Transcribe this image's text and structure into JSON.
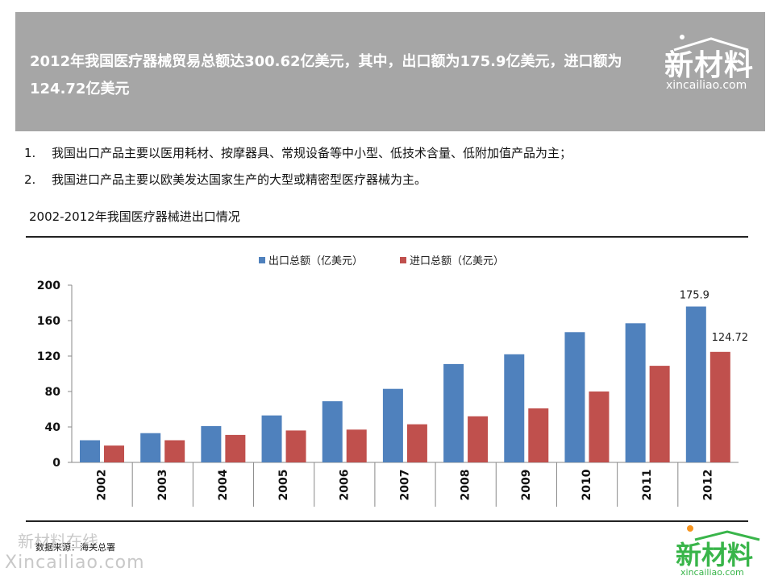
{
  "header": {
    "title": "2012年我国医疗器械贸易总额达300.62亿美元，其中，出口额为175.9亿美元，进口额为124.72亿美元"
  },
  "logo": {
    "cn": "新材料",
    "en": "xincailiao.com"
  },
  "bullets": [
    {
      "num": "1.",
      "text": "我国出口产品主要以医用耗材、按摩器具、常规设备等中小型、低技术含量、低附加值产品为主；"
    },
    {
      "num": "2.",
      "text": "我国进口产品主要以欧美发达国家生产的大型或精密型医疗器械为主。"
    }
  ],
  "chart_title": "2002-2012年我国医疗器械进出口情况",
  "source": "数据来源：海关总署",
  "watermark": {
    "cn": "新材料在线",
    "en": "Xincailiao.com"
  },
  "colors": {
    "export": "#4f81bd",
    "import": "#c0504d",
    "header_bg": "#a6a6a6",
    "logo_green": "#39b54a"
  },
  "chart_data": {
    "type": "bar",
    "categories": [
      "2002",
      "2003",
      "2004",
      "2005",
      "2006",
      "2007",
      "2008",
      "2009",
      "2010",
      "2011",
      "2012"
    ],
    "series": [
      {
        "name": "出口总额（亿美元）",
        "values": [
          25,
          33,
          41,
          53,
          69,
          83,
          111,
          122,
          147,
          157,
          175.9
        ]
      },
      {
        "name": "进口总额（亿美元）",
        "values": [
          19,
          25,
          31,
          36,
          37,
          43,
          52,
          61,
          80,
          109,
          124.72
        ]
      }
    ],
    "data_labels": {
      "show_only_last": true,
      "last_labels": [
        "175.9",
        "124.72"
      ]
    },
    "y_ticks": [
      "0",
      "40",
      "80",
      "120",
      "160",
      "200"
    ],
    "ylim": [
      0,
      200
    ],
    "legend": "top",
    "grid": false
  }
}
